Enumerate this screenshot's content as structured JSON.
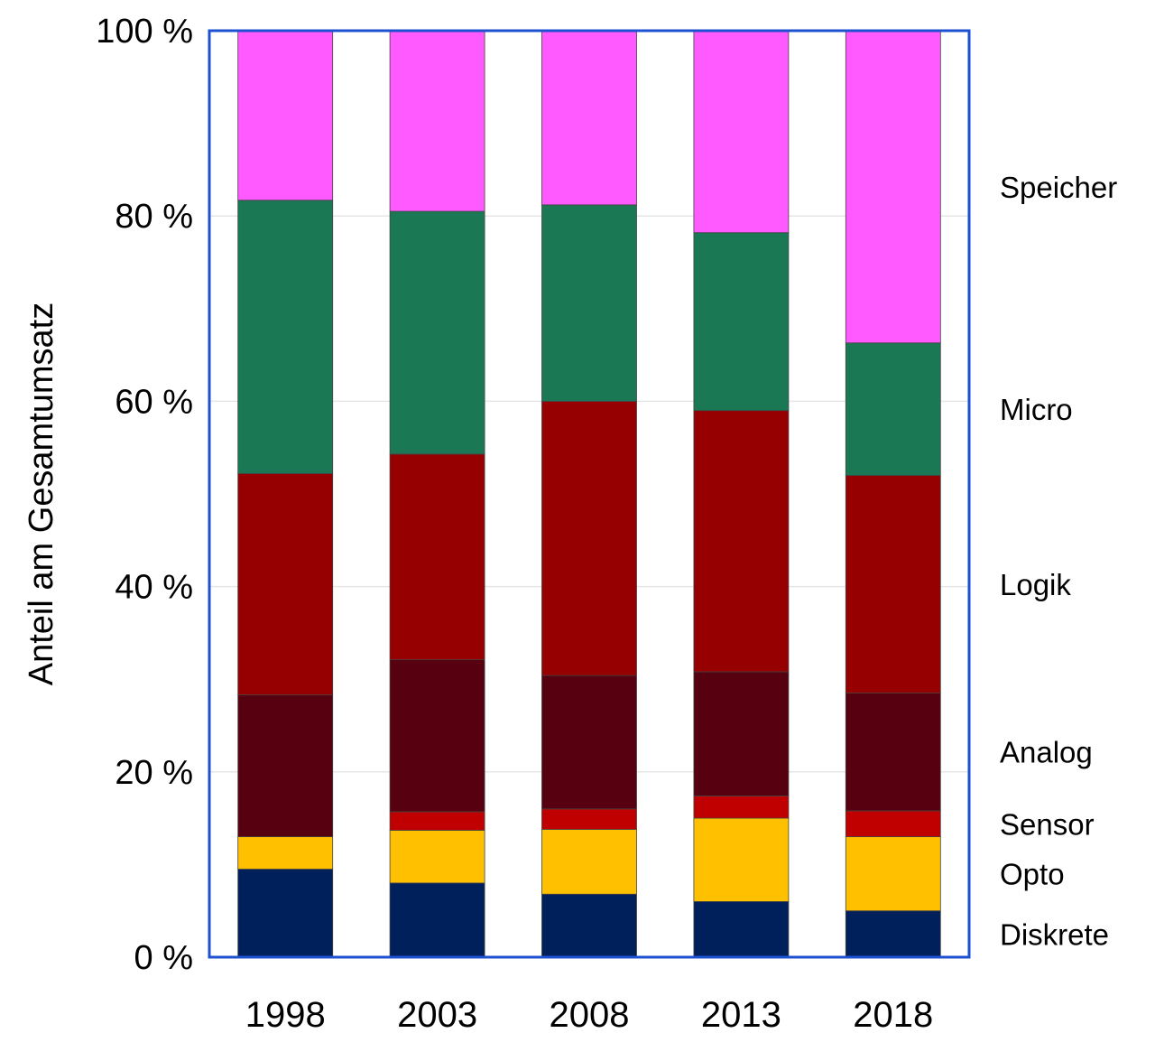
{
  "chart_data": {
    "type": "bar",
    "stacked": true,
    "normalized": true,
    "categories": [
      "1998",
      "2003",
      "2008",
      "2013",
      "2018"
    ],
    "ylabel": "Anteil am Gesamtumsatz",
    "xlabel": "",
    "ylim": [
      0,
      100
    ],
    "y_ticks": [
      {
        "value": 0,
        "label": "0 %"
      },
      {
        "value": 20,
        "label": "20 %"
      },
      {
        "value": 40,
        "label": "40 %"
      },
      {
        "value": 60,
        "label": "60 %"
      },
      {
        "value": 80,
        "label": "80 %"
      },
      {
        "value": 100,
        "label": "100 %"
      }
    ],
    "grid": true,
    "legend": "right, labels aligned to stacked segments",
    "series": [
      {
        "name": "Diskrete",
        "color": "#00205C",
        "values": [
          9.5,
          8,
          6.8,
          6,
          5
        ]
      },
      {
        "name": "Opto",
        "color": "#FFC000",
        "values": [
          3.5,
          5.7,
          7,
          9,
          8
        ]
      },
      {
        "name": "Sensor",
        "color": "#C00000",
        "values": [
          0,
          2,
          2.2,
          2.4,
          2.8
        ]
      },
      {
        "name": "Analog",
        "color": "#560010",
        "values": [
          15.3,
          16.4,
          14.4,
          13.4,
          12.7
        ]
      },
      {
        "name": "Logik",
        "color": "#960000",
        "values": [
          23.9,
          22.2,
          29.6,
          28.2,
          23.5
        ]
      },
      {
        "name": "Micro",
        "color": "#1A7855",
        "values": [
          29.5,
          26.2,
          21.2,
          19.2,
          14.3
        ]
      },
      {
        "name": "Speicher",
        "color": "#FF5AFF",
        "values": [
          18.3,
          19.5,
          18.8,
          21.8,
          33.7
        ]
      }
    ],
    "frame_color": "#1E50D2"
  }
}
